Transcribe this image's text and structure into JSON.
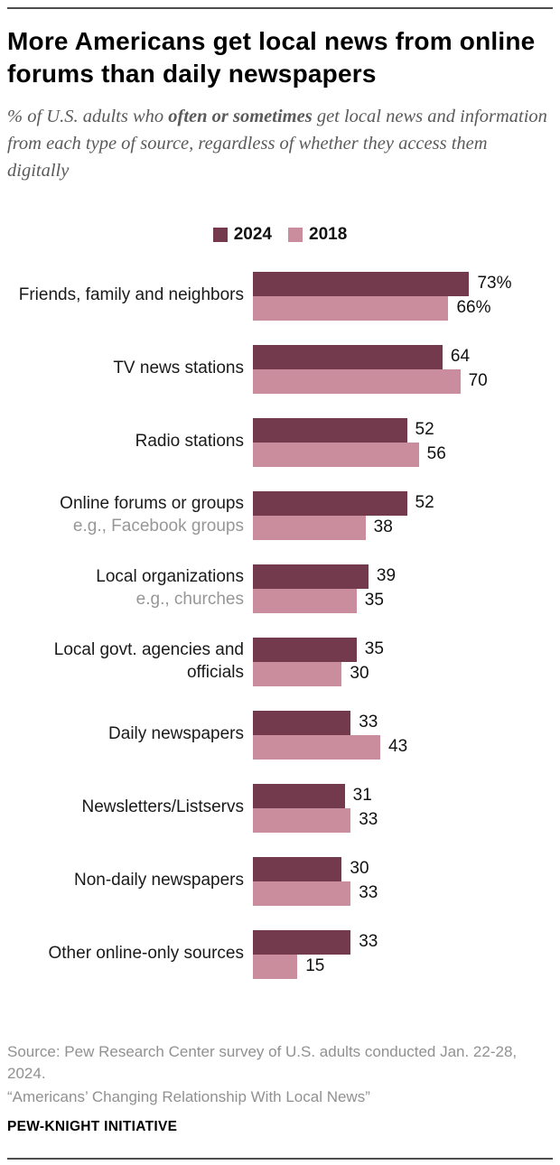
{
  "header": {
    "title": "More Americans get local news from online forums than daily newspapers",
    "subtitle_part1": "% of U.S. adults who ",
    "subtitle_bold": "often or sometimes",
    "subtitle_part2": " get local news and information from each type of source, regardless of whether they access them digitally"
  },
  "colors": {
    "series_2024": "#733a4e",
    "series_2018": "#c98d9e",
    "sublabel_gray": "#979797"
  },
  "chart_data": {
    "type": "bar",
    "orientation": "horizontal",
    "xlim": [
      0,
      80
    ],
    "grid": false,
    "legend_position": "top-center",
    "categories": [
      "Friends, family and neighbors",
      "TV news stations",
      "Radio stations",
      "Online forums or groups",
      "Local organizations",
      "Local govt. agencies and officials",
      "Daily newspapers",
      "Newsletters/Listservs",
      "Non-daily newspapers",
      "Other online-only sources"
    ],
    "sublabels": [
      "",
      "",
      "",
      "e.g., Facebook groups",
      "e.g., churches",
      "",
      "",
      "",
      "",
      ""
    ],
    "series": [
      {
        "name": "2024",
        "color": "#733a4e",
        "values": [
          73,
          64,
          52,
          52,
          39,
          35,
          33,
          31,
          30,
          33
        ],
        "display": [
          "73%",
          "64",
          "52",
          "52",
          "39",
          "35",
          "33",
          "31",
          "30",
          "33"
        ]
      },
      {
        "name": "2018",
        "color": "#c98d9e",
        "values": [
          66,
          70,
          56,
          38,
          35,
          30,
          43,
          33,
          33,
          15
        ],
        "display": [
          "66%",
          "70",
          "56",
          "38",
          "35",
          "30",
          "43",
          "33",
          "33",
          "15"
        ]
      }
    ]
  },
  "footer": {
    "source": "Source: Pew Research Center survey of U.S. adults conducted Jan. 22-28, 2024.",
    "quote": "“Americans’ Changing Relationship With Local News”",
    "brand": "PEW-KNIGHT INITIATIVE"
  }
}
